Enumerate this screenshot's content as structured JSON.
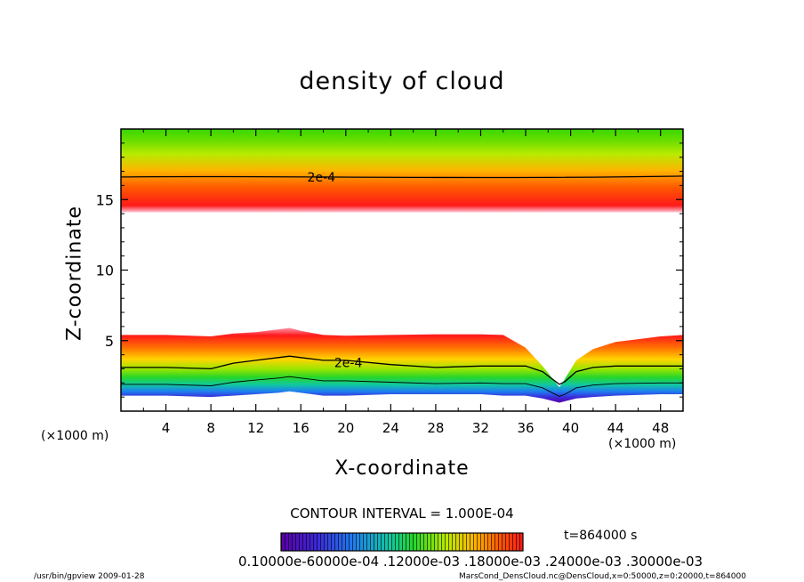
{
  "chart_data": {
    "type": "heatmap",
    "title": "density of cloud",
    "xlabel": "X-coordinate",
    "ylabel": "Z-coordinate",
    "x_unit": "(×1000 m)",
    "xlim": [
      0,
      50
    ],
    "ylim": [
      0,
      20
    ],
    "x_ticks": [
      4,
      8,
      12,
      16,
      20,
      24,
      28,
      32,
      36,
      40,
      44,
      48
    ],
    "y_ticks": [
      5,
      10,
      15
    ],
    "contour_interval": "CONTOUR INTERVAL = 1.000E-04",
    "contour_label": "2e-4",
    "upper_layer": {
      "bottom": 14.1,
      "top": 20,
      "contour_2e4": 16.6
    },
    "lower_layer_x": [
      0,
      4,
      8,
      10,
      12,
      14,
      15,
      16,
      18,
      20,
      24,
      28,
      32,
      34,
      36,
      37.5,
      38.5,
      39,
      39.5,
      40.5,
      42,
      44,
      48,
      50
    ],
    "lower_layer_top": [
      5.4,
      5.4,
      5.3,
      5.5,
      5.6,
      5.8,
      5.9,
      5.7,
      5.4,
      5.35,
      5.4,
      5.45,
      5.45,
      5.4,
      4.5,
      3.2,
      2.2,
      1.7,
      2.3,
      3.6,
      4.4,
      4.9,
      5.3,
      5.4
    ],
    "lower_contour_2e4": [
      3.1,
      3.1,
      3.0,
      3.4,
      3.6,
      3.8,
      3.9,
      3.8,
      3.6,
      3.6,
      3.3,
      3.1,
      3.2,
      3.2,
      3.2,
      2.8,
      2.2,
      1.9,
      2.1,
      2.8,
      3.1,
      3.2,
      3.2,
      3.2
    ],
    "lower_layer_bottom": [
      1.1,
      1.1,
      1.0,
      1.1,
      1.2,
      1.3,
      1.4,
      1.3,
      1.1,
      1.1,
      1.2,
      1.2,
      1.2,
      1.1,
      1.1,
      0.9,
      0.7,
      0.6,
      0.7,
      0.9,
      1.0,
      1.1,
      1.2,
      1.2
    ],
    "colorbar_labels": "0.10000e-60000e-04 .12000e-03 .18000e-03 .24000e-03 .30000e-03",
    "colors": {
      "low": "#5a00a8",
      "mid": "#27d62a",
      "high": "#ff1a1a",
      "top": "#38d800"
    }
  },
  "time_label": "t=864000 s",
  "footer_left": "/usr/bin/gpview   2009-01-28",
  "footer_right": "MarsCond_DensCloud.nc@DensCloud,x=0:50000,z=0:20000,t=864000"
}
